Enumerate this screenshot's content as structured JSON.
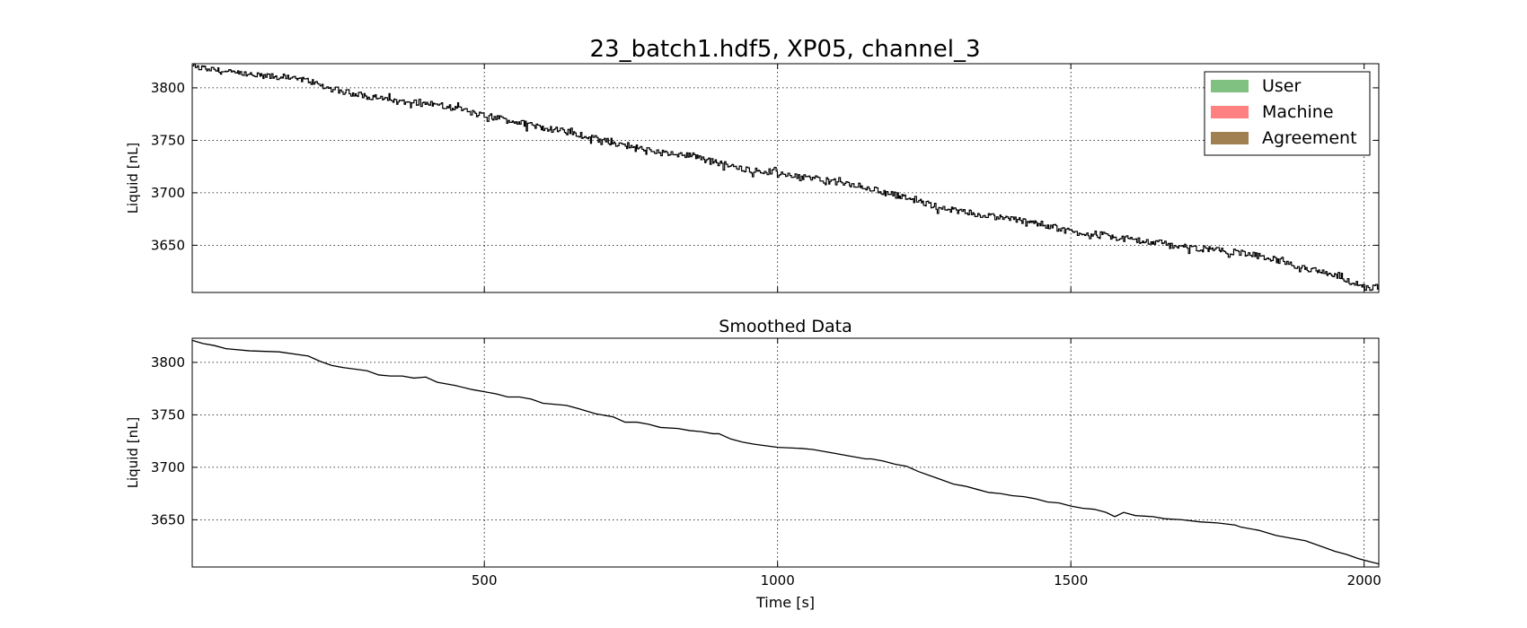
{
  "figure": {
    "title": "23_batch1.hdf5, XP05, channel_3"
  },
  "chart_data": [
    {
      "type": "line",
      "title": "23_batch1.hdf5, XP05, channel_3",
      "xlabel": "",
      "ylabel": "Liquid [nL]",
      "xlim": [
        2,
        2025
      ],
      "ylim": [
        3605,
        3823
      ],
      "xticks": [
        500,
        1000,
        1500,
        2000
      ],
      "yticks": [
        3650,
        3700,
        3750,
        3800
      ],
      "grid": true,
      "legend": {
        "position": "top-right",
        "entries": [
          {
            "label": "User",
            "color": "#80c080"
          },
          {
            "label": "Machine",
            "color": "#ff8080"
          },
          {
            "label": "Agreement",
            "color": "#a08050"
          }
        ]
      },
      "series": [
        {
          "color": "#000000",
          "noisy": true,
          "x": [
            2,
            30,
            60,
            100,
            150,
            200,
            230,
            260,
            300,
            350,
            400,
            450,
            500,
            550,
            600,
            650,
            700,
            750,
            800,
            850,
            900,
            950,
            1000,
            1050,
            1100,
            1150,
            1200,
            1250,
            1300,
            1350,
            1400,
            1450,
            1500,
            1550,
            1600,
            1650,
            1700,
            1750,
            1800,
            1850,
            1900,
            1950,
            2000,
            2025
          ],
          "y": [
            3820,
            3818,
            3815,
            3812,
            3810,
            3807,
            3800,
            3796,
            3792,
            3787,
            3786,
            3780,
            3773,
            3768,
            3762,
            3757,
            3750,
            3744,
            3738,
            3735,
            3728,
            3722,
            3719,
            3715,
            3710,
            3705,
            3698,
            3690,
            3683,
            3678,
            3675,
            3670,
            3663,
            3660,
            3655,
            3652,
            3648,
            3645,
            3642,
            3635,
            3628,
            3620,
            3610,
            3610
          ]
        }
      ]
    },
    {
      "type": "line",
      "title": "Smoothed Data",
      "xlabel": "Time [s]",
      "ylabel": "Liquid [nL]",
      "xlim": [
        2,
        2025
      ],
      "ylim": [
        3605,
        3823
      ],
      "xticks": [
        500,
        1000,
        1500,
        2000
      ],
      "yticks": [
        3650,
        3700,
        3750,
        3800
      ],
      "grid": true,
      "series": [
        {
          "color": "#000000",
          "noisy": false,
          "x": [
            2,
            20,
            40,
            60,
            100,
            150,
            200,
            220,
            240,
            260,
            300,
            320,
            340,
            360,
            380,
            400,
            420,
            450,
            480,
            500,
            520,
            540,
            560,
            580,
            600,
            640,
            660,
            690,
            700,
            720,
            740,
            760,
            780,
            800,
            830,
            850,
            870,
            890,
            900,
            920,
            940,
            960,
            1000,
            1040,
            1060,
            1100,
            1120,
            1150,
            1160,
            1180,
            1200,
            1220,
            1240,
            1260,
            1280,
            1300,
            1320,
            1340,
            1360,
            1380,
            1400,
            1420,
            1440,
            1460,
            1480,
            1500,
            1520,
            1540,
            1560,
            1575,
            1590,
            1610,
            1640,
            1660,
            1690,
            1720,
            1750,
            1780,
            1790,
            1820,
            1850,
            1870,
            1900,
            1910,
            1930,
            1950,
            1970,
            1990,
            2010,
            2025
          ],
          "y": [
            3821,
            3818,
            3816,
            3813,
            3811,
            3810,
            3806,
            3801,
            3797,
            3795,
            3792,
            3788,
            3787,
            3787,
            3785,
            3786,
            3781,
            3778,
            3774,
            3772,
            3770,
            3767,
            3767,
            3765,
            3761,
            3759,
            3756,
            3751,
            3750,
            3748,
            3743,
            3743,
            3741,
            3738,
            3737,
            3735,
            3734,
            3732,
            3732,
            3727,
            3724,
            3722,
            3719,
            3718,
            3717,
            3713,
            3711,
            3708,
            3708,
            3706,
            3703,
            3701,
            3696,
            3692,
            3688,
            3684,
            3682,
            3679,
            3676,
            3675,
            3673,
            3672,
            3670,
            3667,
            3666,
            3663,
            3661,
            3660,
            3657,
            3653,
            3657,
            3654,
            3653,
            3651,
            3650,
            3648,
            3647,
            3645,
            3643,
            3640,
            3635,
            3633,
            3630,
            3628,
            3624,
            3620,
            3617,
            3613,
            3610,
            3608
          ]
        }
      ]
    }
  ]
}
